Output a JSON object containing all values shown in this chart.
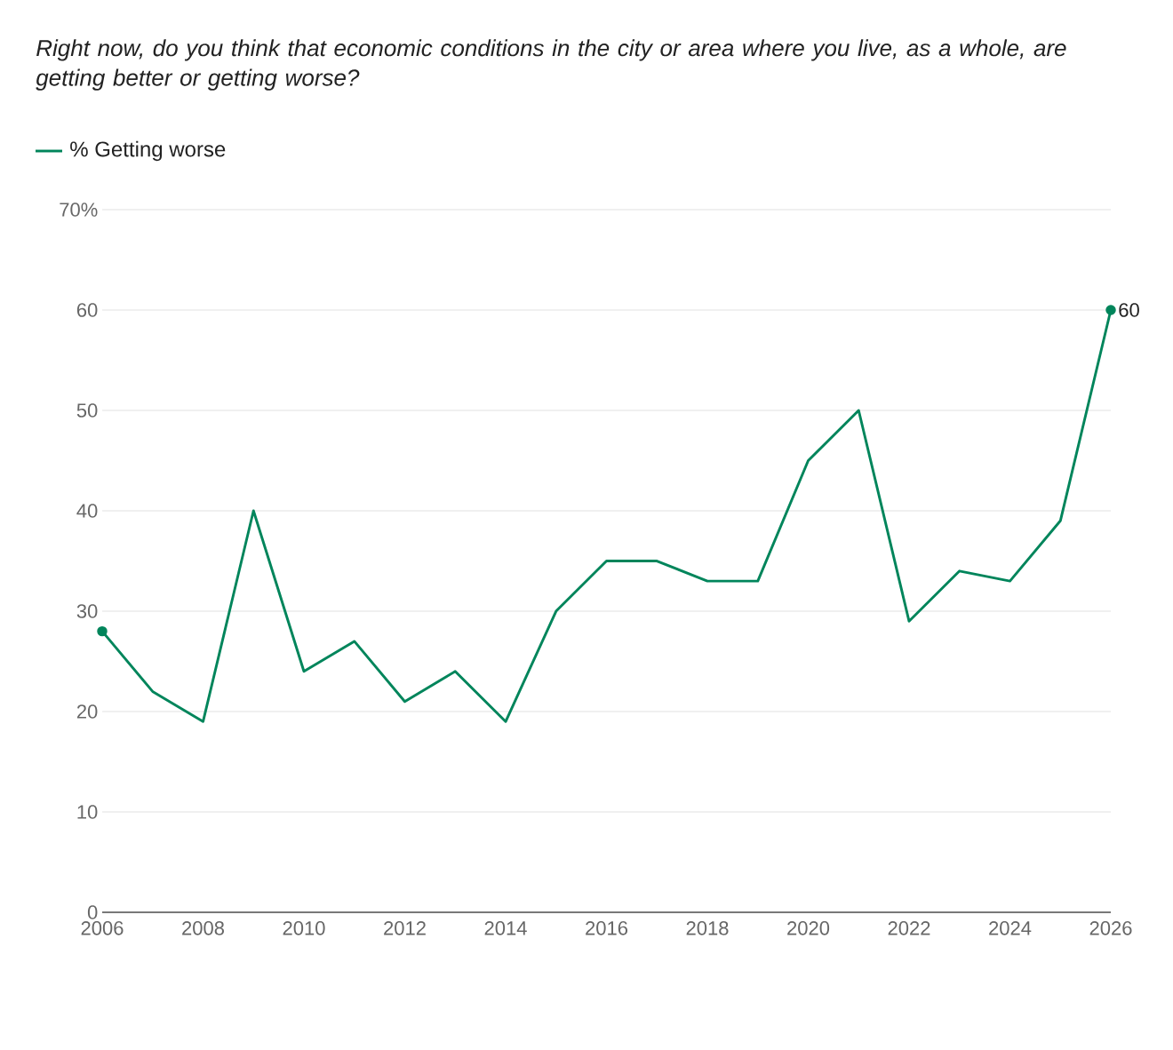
{
  "chart_data": {
    "type": "line",
    "title": "Right now, do you think that economic conditions in the city or area where you live, as a whole, are getting better or getting worse?",
    "x": [
      2006,
      2007,
      2008,
      2009,
      2010,
      2011,
      2012,
      2013,
      2014,
      2015,
      2016,
      2017,
      2018,
      2019,
      2020,
      2021,
      2022,
      2023,
      2024,
      2025,
      2026
    ],
    "series": [
      {
        "name": "% Getting worse",
        "color": "#00855b",
        "values": [
          28,
          22,
          19,
          40,
          24,
          27,
          21,
          24,
          19,
          30,
          35,
          35,
          33,
          33,
          45,
          50,
          29,
          34,
          33,
          39,
          60
        ]
      }
    ],
    "xlim": [
      2006,
      2026
    ],
    "xticks": [
      2006,
      2008,
      2010,
      2012,
      2014,
      2016,
      2018,
      2020,
      2022,
      2024,
      2026
    ],
    "ylim": [
      0,
      70
    ],
    "yticks": [
      0,
      10,
      20,
      30,
      40,
      50,
      60,
      {
        "value": 70,
        "label": "70%"
      }
    ],
    "grid": "y",
    "legend": "top left",
    "line_style": "solid",
    "annotations": [
      {
        "text": "60",
        "x": 2026,
        "y": 60
      }
    ]
  }
}
